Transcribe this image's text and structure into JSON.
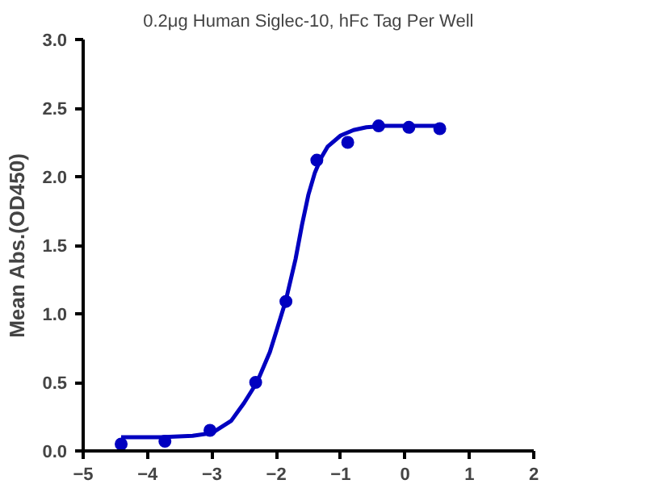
{
  "chart_data": {
    "type": "scatter",
    "title": "0.2μg Human Siglec-10, hFc Tag Per Well",
    "ylabel": "Mean Abs.(OD450)",
    "xlim": [
      -5,
      2
    ],
    "xticks": [
      -5,
      -4,
      -3,
      -2,
      -1,
      0,
      1,
      2
    ],
    "ylim": [
      0,
      3
    ],
    "yticks": [
      {
        "value": 0,
        "label": "0.0"
      },
      {
        "value": 0.5,
        "label": "0.5"
      },
      {
        "value": 1,
        "label": "1.0"
      },
      {
        "value": 1.5,
        "label": "1.5"
      },
      {
        "value": 2,
        "label": "2.0"
      },
      {
        "value": 2.5,
        "label": "2.5"
      },
      {
        "value": 3,
        "label": "3.0"
      }
    ],
    "grid": false,
    "marker": "circle",
    "series": [
      {
        "color": "#0000c0",
        "x": [
          -4.41,
          -3.73,
          -3.03,
          -2.32,
          -1.85,
          -1.37,
          -0.89,
          -0.41,
          0.06,
          0.54
        ],
        "values": [
          0.05,
          0.07,
          0.15,
          0.5,
          1.09,
          2.12,
          2.25,
          2.37,
          2.36,
          2.35
        ]
      },
      {
        "type": "line",
        "marker": "none",
        "color": "#0000c0",
        "x": [
          -4.41,
          -3.8,
          -3.3,
          -3.0,
          -2.7,
          -2.5,
          -2.3,
          -2.1,
          -2.0,
          -1.85,
          -1.7,
          -1.6,
          -1.5,
          -1.4,
          -1.3,
          -1.2,
          -1.0,
          -0.8,
          -0.6,
          -0.3,
          0.0,
          0.54
        ],
        "values": [
          0.1,
          0.1,
          0.11,
          0.13,
          0.22,
          0.35,
          0.5,
          0.72,
          0.87,
          1.1,
          1.4,
          1.65,
          1.87,
          2.03,
          2.14,
          2.22,
          2.3,
          2.34,
          2.36,
          2.37,
          2.37,
          2.37
        ]
      }
    ]
  }
}
